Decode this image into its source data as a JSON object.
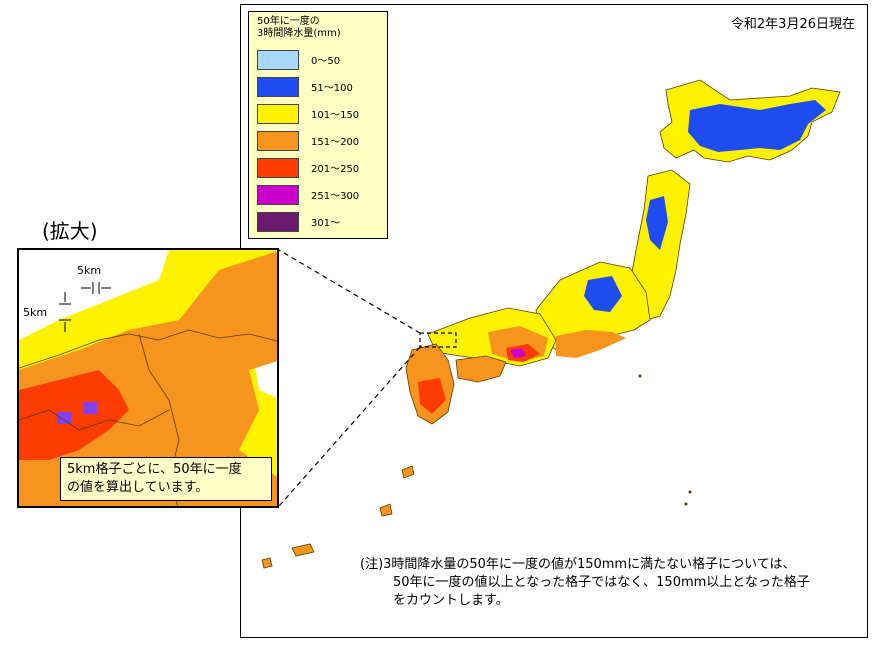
{
  "date_label": "令和2年3月26日現在",
  "legend": {
    "title_line1": "50年に一度の",
    "title_line2": "3時間降水量(mm)",
    "items": [
      {
        "label": "0～50",
        "color": "#a8d8f8"
      },
      {
        "label": "51～100",
        "color": "#1f4cf0"
      },
      {
        "label": "101～150",
        "color": "#fff200"
      },
      {
        "label": "151～200",
        "color": "#f7941d"
      },
      {
        "label": "201～250",
        "color": "#ff3c00"
      },
      {
        "label": "251～300",
        "color": "#cc00cc"
      },
      {
        "label": "301～",
        "color": "#6a1b6e"
      }
    ]
  },
  "zoom": {
    "title": "(拡大)",
    "scale_h": "5km",
    "scale_v": "5km",
    "caption_line1": "5km格子ごとに、50年に一度",
    "caption_line2": "の値を算出しています。"
  },
  "note": {
    "line1": "(注)3時間降水量の50年に一度の値が150mmに満たない格子については、",
    "line2": "50年に一度の値以上となった格子ではなく、150mm以上となった格子",
    "line3": "をカウントします。"
  }
}
